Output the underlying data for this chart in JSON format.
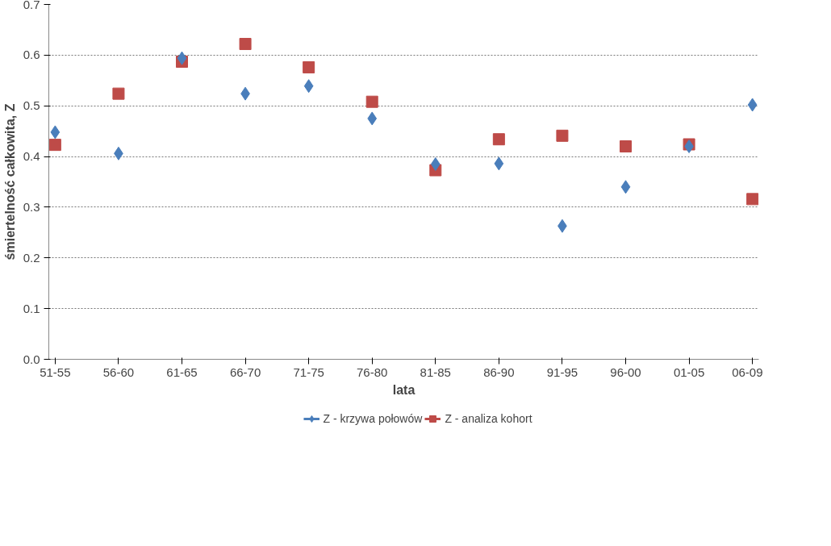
{
  "chart_data": {
    "type": "scatter",
    "xlabel": "lata",
    "ylabel": "śmiertelność całkowita, Z",
    "categories": [
      "51-55",
      "56-60",
      "61-65",
      "66-70",
      "71-75",
      "76-80",
      "81-85",
      "86-90",
      "91-95",
      "96-00",
      "01-05",
      "06-09"
    ],
    "series": [
      {
        "name": "Z - krzywa połowów",
        "color": "#4a7ebb",
        "marker": "diamond",
        "values": [
          0.448,
          0.406,
          0.594,
          0.524,
          0.539,
          0.475,
          0.385,
          0.386,
          0.263,
          0.34,
          0.42,
          0.502
        ]
      },
      {
        "name": "Z - analiza kohort",
        "color": "#be4b48",
        "marker": "square",
        "values": [
          0.423,
          0.524,
          0.587,
          0.622,
          0.576,
          0.508,
          0.373,
          0.434,
          0.441,
          0.42,
          0.424,
          0.316
        ]
      }
    ],
    "ylim": [
      0,
      0.7
    ],
    "yticks": [
      {
        "value": 0,
        "label": "0.0"
      },
      0.1,
      0.2,
      0.3,
      0.4,
      0.5,
      0.6,
      0.7
    ],
    "grid": "y",
    "legend": "bottom"
  }
}
